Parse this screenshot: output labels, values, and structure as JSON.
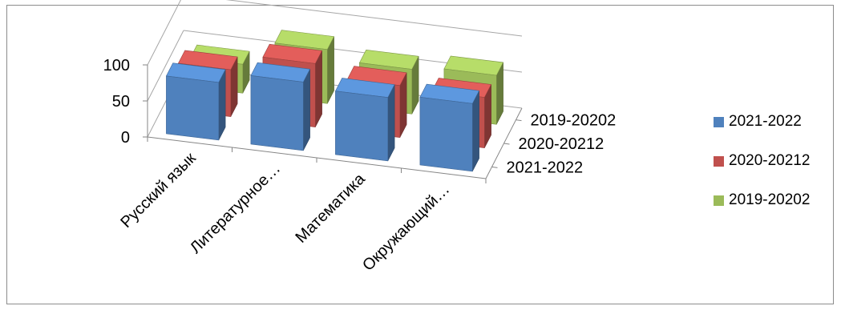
{
  "chart_data": {
    "type": "bar",
    "title": "",
    "xlabel": "",
    "ylabel": "",
    "ylim": [
      0,
      100
    ],
    "yticks": [
      "0",
      "50",
      "100"
    ],
    "categories": [
      "Русский язык",
      "Литературное…",
      "Математика",
      "Окружающий…"
    ],
    "depth_labels": [
      "2019-20202",
      "2020-20212",
      "2021-2022"
    ],
    "series": [
      {
        "name": "2021-2022",
        "color": "#4f81bd",
        "values": [
          80,
          95,
          88,
          94
        ]
      },
      {
        "name": "2020-20212",
        "color": "#c0504d",
        "values": [
          65,
          88,
          72,
          70
        ]
      },
      {
        "name": "2019-20202",
        "color": "#9bbb59",
        "values": [
          40,
          75,
          62,
          68
        ]
      }
    ],
    "grid": true,
    "legend_position": "right"
  }
}
